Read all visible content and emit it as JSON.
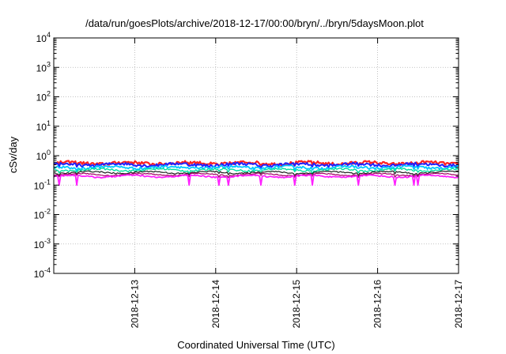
{
  "chart_data": {
    "type": "line",
    "title": "/data/run/goesPlots/archive/2018-12-17/00:00/bryn/../bryn/5daysMoon.plot",
    "xlabel": "Coordinated Universal Time (UTC)",
    "ylabel": "cSv/day",
    "y_scale": "log",
    "ylim": [
      0.0001,
      10000
    ],
    "y_ticks": [
      {
        "value": 0.0001,
        "base": "10",
        "exp": "-4"
      },
      {
        "value": 0.001,
        "base": "10",
        "exp": "-3"
      },
      {
        "value": 0.01,
        "base": "10",
        "exp": "-2"
      },
      {
        "value": 0.1,
        "base": "10",
        "exp": "-1"
      },
      {
        "value": 1,
        "base": "10",
        "exp": "0"
      },
      {
        "value": 10,
        "base": "10",
        "exp": "1"
      },
      {
        "value": 100,
        "base": "10",
        "exp": "2"
      },
      {
        "value": 1000,
        "base": "10",
        "exp": "3"
      },
      {
        "value": 10000,
        "base": "10",
        "exp": "4"
      }
    ],
    "xlim": [
      "2018-12-12 00:00",
      "2018-12-17 00:00"
    ],
    "x_ticks": [
      "2018-12-13",
      "2018-12-14",
      "2018-12-15",
      "2018-12-16",
      "2018-12-17"
    ],
    "grid": true,
    "legend": "none",
    "series": [
      {
        "color": "#ff2020",
        "base": 0.56,
        "noise": 0.12,
        "dips": false,
        "width": 2.2
      },
      {
        "color": "#2020ff",
        "base": 0.5,
        "noise": 0.11,
        "dips": false,
        "width": 2.0
      },
      {
        "color": "#00c8ff",
        "base": 0.4,
        "noise": 0.1,
        "dips": false,
        "width": 1.8
      },
      {
        "color": "#00e0a0",
        "base": 0.33,
        "noise": 0.07,
        "dips": false,
        "width": 1.4
      },
      {
        "color": "#202020",
        "base": 0.27,
        "noise": 0.05,
        "dips": false,
        "width": 1.2
      },
      {
        "color": "#a00060",
        "base": 0.23,
        "noise": 0.04,
        "dips": false,
        "width": 1.2
      },
      {
        "color": "#ff20ff",
        "base": 0.2,
        "noise": 0.05,
        "dips": true,
        "width": 1.8
      }
    ]
  }
}
